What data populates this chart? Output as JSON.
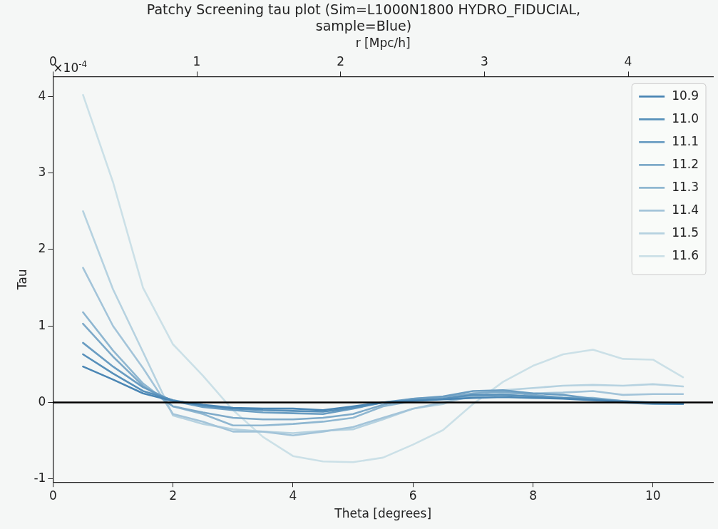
{
  "chart_data": {
    "type": "line",
    "title": "Patchy Screening tau plot (Sim=L1000N1800 HYDRO_FIDUCIAL, sample=Blue)",
    "xlabel": "Theta [degrees]",
    "ylabel": "Tau",
    "x2label": "r [Mpc/h]",
    "x": [
      0.5,
      1,
      1.5,
      2,
      2.5,
      3,
      3.5,
      4,
      4.5,
      5,
      5.5,
      6,
      6.5,
      7,
      7.5,
      8,
      8.5,
      9,
      9.5,
      10,
      10.5
    ],
    "series": [
      {
        "name": "10.9",
        "color": "#4a86b4",
        "values": [
          0.47,
          0.3,
          0.12,
          0.02,
          -0.03,
          -0.07,
          -0.08,
          -0.08,
          -0.1,
          -0.05,
          0.0,
          0.02,
          0.04,
          0.06,
          0.07,
          0.06,
          0.05,
          0.03,
          0.01,
          0.0,
          -0.01
        ]
      },
      {
        "name": "11.0",
        "color": "#5790ba",
        "values": [
          0.63,
          0.38,
          0.15,
          0.03,
          -0.04,
          -0.08,
          -0.1,
          -0.11,
          -0.12,
          -0.07,
          0.0,
          0.03,
          0.05,
          0.1,
          0.1,
          0.08,
          0.06,
          0.04,
          0.01,
          -0.01,
          -0.02
        ]
      },
      {
        "name": "11.1",
        "color": "#6a9dc2",
        "values": [
          0.78,
          0.47,
          0.2,
          0.02,
          -0.06,
          -0.1,
          -0.13,
          -0.14,
          -0.15,
          -0.08,
          0.0,
          0.05,
          0.08,
          0.15,
          0.16,
          0.12,
          0.1,
          0.05,
          0.02,
          -0.01,
          -0.02
        ]
      },
      {
        "name": "11.2",
        "color": "#7eaac9",
        "values": [
          1.03,
          0.6,
          0.22,
          -0.05,
          -0.13,
          -0.2,
          -0.22,
          -0.22,
          -0.2,
          -0.15,
          -0.03,
          0.05,
          0.07,
          0.12,
          0.14,
          0.1,
          0.06,
          0.04,
          0.0,
          -0.02,
          -0.02
        ]
      },
      {
        "name": "11.3",
        "color": "#8fb7d1",
        "values": [
          1.18,
          0.68,
          0.25,
          -0.05,
          -0.15,
          -0.3,
          -0.3,
          -0.28,
          -0.25,
          -0.2,
          -0.05,
          0.02,
          0.05,
          0.08,
          0.1,
          0.08,
          0.06,
          0.06,
          0.02,
          0.0,
          -0.02
        ]
      },
      {
        "name": "11.4",
        "color": "#a3c4d9",
        "values": [
          1.76,
          1.0,
          0.45,
          -0.15,
          -0.25,
          -0.38,
          -0.38,
          -0.43,
          -0.38,
          -0.32,
          -0.2,
          -0.08,
          0.0,
          0.08,
          0.12,
          0.12,
          0.13,
          0.15,
          0.1,
          0.11,
          0.11
        ]
      },
      {
        "name": "11.5",
        "color": "#b6d2e0",
        "values": [
          2.5,
          1.48,
          0.66,
          -0.17,
          -0.28,
          -0.35,
          -0.38,
          -0.4,
          -0.37,
          -0.35,
          -0.22,
          -0.08,
          -0.02,
          0.12,
          0.16,
          0.19,
          0.22,
          0.23,
          0.22,
          0.24,
          0.21
        ]
      },
      {
        "name": "11.6",
        "color": "#cbe0e7",
        "values": [
          4.02,
          2.88,
          1.5,
          0.76,
          0.35,
          -0.1,
          -0.45,
          -0.7,
          -0.77,
          -0.78,
          -0.72,
          -0.55,
          -0.36,
          -0.02,
          0.27,
          0.48,
          0.63,
          0.69,
          0.57,
          0.56,
          0.33
        ]
      }
    ],
    "xlim": [
      0,
      11
    ],
    "xticks": [
      0,
      2,
      4,
      6,
      8,
      10
    ],
    "ylim": [
      -1.04,
      4.26
    ],
    "yticks": [
      -1,
      0,
      1,
      2,
      3,
      4
    ],
    "x2lim": [
      0,
      4.59
    ],
    "x2ticks": [
      0,
      1,
      2,
      3,
      4
    ],
    "ref_lines": [
      {
        "axis": "y",
        "value": 0,
        "color": "#000000"
      }
    ],
    "annotations": [
      "×10$^{-4}$"
    ],
    "legend": "top right",
    "grid": false,
    "marker": "none",
    "line_style": "solid"
  }
}
